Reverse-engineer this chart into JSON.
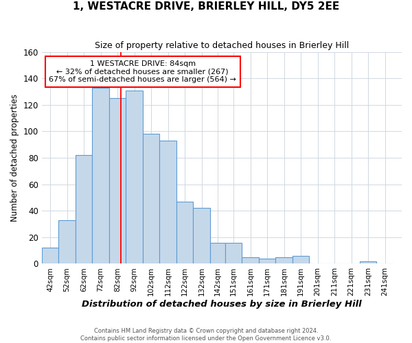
{
  "title": "1, WESTACRE DRIVE, BRIERLEY HILL, DY5 2EE",
  "subtitle": "Size of property relative to detached houses in Brierley Hill",
  "xlabel": "Distribution of detached houses by size in Brierley Hill",
  "ylabel": "Number of detached properties",
  "footer1": "Contains HM Land Registry data © Crown copyright and database right 2024.",
  "footer2": "Contains public sector information licensed under the Open Government Licence v3.0.",
  "annotation_line1": "1 WESTACRE DRIVE: 84sqm",
  "annotation_line2": "← 32% of detached houses are smaller (267)",
  "annotation_line3": "67% of semi-detached houses are larger (564) →",
  "bar_categories": [
    "42sqm",
    "52sqm",
    "62sqm",
    "72sqm",
    "82sqm",
    "92sqm",
    "102sqm",
    "112sqm",
    "122sqm",
    "132sqm",
    "142sqm",
    "151sqm",
    "161sqm",
    "171sqm",
    "181sqm",
    "191sqm",
    "201sqm",
    "211sqm",
    "221sqm",
    "231sqm",
    "241sqm"
  ],
  "bar_values": [
    12,
    33,
    82,
    133,
    125,
    131,
    98,
    93,
    47,
    42,
    16,
    16,
    5,
    4,
    5,
    6,
    0,
    0,
    0,
    2,
    0
  ],
  "bar_edges": [
    37,
    47,
    57,
    67,
    77,
    87,
    97,
    107,
    117,
    127,
    137,
    146,
    156,
    166,
    176,
    186,
    196,
    206,
    216,
    226,
    236,
    246
  ],
  "bar_color": "#c5d8ea",
  "bar_edgecolor": "#5b9bd5",
  "redline_x": 84,
  "ylim": [
    0,
    160
  ],
  "yticks": [
    0,
    20,
    40,
    60,
    80,
    100,
    120,
    140,
    160
  ],
  "xlim": [
    37,
    251
  ],
  "background_color": "#ffffff",
  "grid_color": "#d0d8e0"
}
